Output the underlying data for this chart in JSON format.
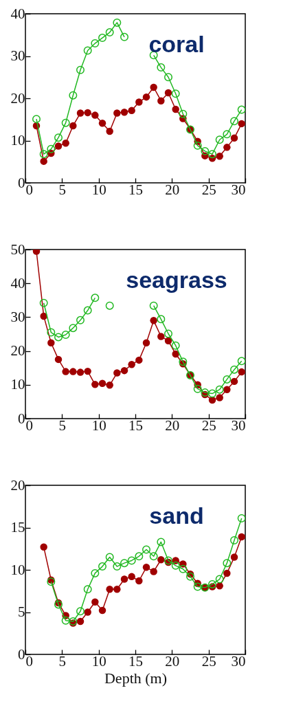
{
  "chart_data": [
    {
      "type": "line",
      "marker": "circle",
      "annotations": [
        "coral"
      ],
      "x": [
        1.5,
        2.5,
        3.5,
        4.5,
        5.5,
        6.5,
        7.5,
        8.5,
        9.5,
        10.5,
        11.5,
        12.5,
        13.5,
        14.5,
        15.5,
        16.5,
        17.5,
        18.5,
        19.5,
        20.5,
        21.5,
        22.5,
        23.5,
        24.5,
        25.5,
        26.5,
        27.5,
        28.5,
        29.5
      ],
      "xlim": [
        0,
        30
      ],
      "xticks": [
        0,
        5,
        10,
        15,
        20,
        25,
        30
      ],
      "ylim": [
        0,
        40
      ],
      "yticks": [
        0,
        10,
        20,
        30,
        40
      ],
      "series": [
        {
          "color": "#a00000",
          "values": [
            13.5,
            5.1,
            7.0,
            8.7,
            9.4,
            13.5,
            16.5,
            16.6,
            16.0,
            14.1,
            12.2,
            16.5,
            16.7,
            17.1,
            19.1,
            20.3,
            22.6,
            19.4,
            21.3,
            17.4,
            15.2,
            12.7,
            9.8,
            6.4,
            5.8,
            6.3,
            8.4,
            10.6,
            14.0
          ]
        },
        {
          "color": "#22b822",
          "values": [
            15.1,
            6.8,
            8.0,
            10.7,
            14.2,
            20.7,
            26.7,
            31.3,
            33.0,
            34.3,
            35.6,
            37.9,
            34.5,
            null,
            null,
            null,
            30.2,
            27.3,
            25.0,
            21.1,
            16.3,
            12.6,
            8.8,
            7.5,
            6.8,
            10.2,
            11.5,
            14.6,
            17.3
          ]
        }
      ]
    },
    {
      "type": "line",
      "marker": "circle",
      "annotations": [
        "seagrass"
      ],
      "x": [
        1.5,
        2.5,
        3.5,
        4.5,
        5.5,
        6.5,
        7.5,
        8.5,
        9.5,
        10.5,
        11.5,
        12.5,
        13.5,
        14.5,
        15.5,
        16.5,
        17.5,
        18.5,
        19.5,
        20.5,
        21.5,
        22.5,
        23.5,
        24.5,
        25.5,
        26.5,
        27.5,
        28.5,
        29.5
      ],
      "xlim": [
        0,
        30
      ],
      "xticks": [
        0,
        5,
        10,
        15,
        20,
        25,
        30
      ],
      "ylim": [
        0,
        50
      ],
      "yticks": [
        0,
        10,
        20,
        30,
        40,
        50
      ],
      "series": [
        {
          "color": "#a00000",
          "values": [
            49.5,
            30.3,
            22.4,
            17.5,
            13.9,
            13.9,
            13.7,
            14.0,
            10.1,
            10.4,
            9.9,
            13.5,
            14.2,
            16.0,
            17.3,
            22.4,
            29.0,
            24.3,
            23.0,
            19.1,
            16.2,
            12.9,
            10.0,
            7.1,
            5.5,
            6.2,
            8.6,
            11.0,
            13.8
          ]
        },
        {
          "color": "#22b822",
          "values": [
            null,
            34.2,
            25.5,
            24.1,
            24.8,
            26.8,
            29.1,
            32.0,
            35.7,
            null,
            33.4,
            null,
            null,
            null,
            null,
            null,
            33.4,
            29.4,
            25.1,
            21.6,
            16.8,
            12.8,
            8.8,
            7.7,
            7.4,
            8.6,
            11.6,
            14.5,
            17.0
          ]
        }
      ]
    },
    {
      "type": "line",
      "marker": "circle",
      "annotations": [
        "sand"
      ],
      "xlabel": "Depth (m)",
      "x": [
        2.5,
        3.5,
        4.5,
        5.5,
        6.5,
        7.5,
        8.5,
        9.5,
        10.5,
        11.5,
        12.5,
        13.5,
        14.5,
        15.5,
        16.5,
        17.5,
        18.5,
        19.5,
        20.5,
        21.5,
        22.5,
        23.5,
        24.5,
        25.5,
        26.5,
        27.5,
        28.5,
        29.5
      ],
      "xlim": [
        0,
        30
      ],
      "xticks": [
        0,
        5,
        10,
        15,
        20,
        25,
        30
      ],
      "ylim": [
        0,
        20
      ],
      "yticks": [
        0,
        5,
        10,
        15,
        20
      ],
      "series": [
        {
          "color": "#a00000",
          "values": [
            12.7,
            8.8,
            6.1,
            4.6,
            3.7,
            3.9,
            5.0,
            6.2,
            5.2,
            7.7,
            7.7,
            8.9,
            9.2,
            8.7,
            10.3,
            9.8,
            11.2,
            10.9,
            11.1,
            10.7,
            9.5,
            8.4,
            7.9,
            8.0,
            8.1,
            9.6,
            11.5,
            13.9
          ]
        },
        {
          "color": "#22b822",
          "values": [
            null,
            8.6,
            5.9,
            4.0,
            3.9,
            5.1,
            7.7,
            9.6,
            10.4,
            11.5,
            10.4,
            10.8,
            11.1,
            11.6,
            12.4,
            11.6,
            13.3,
            11.1,
            10.5,
            10.1,
            9.2,
            8.0,
            7.9,
            8.3,
            8.9,
            10.8,
            13.5,
            16.1
          ]
        }
      ]
    }
  ]
}
